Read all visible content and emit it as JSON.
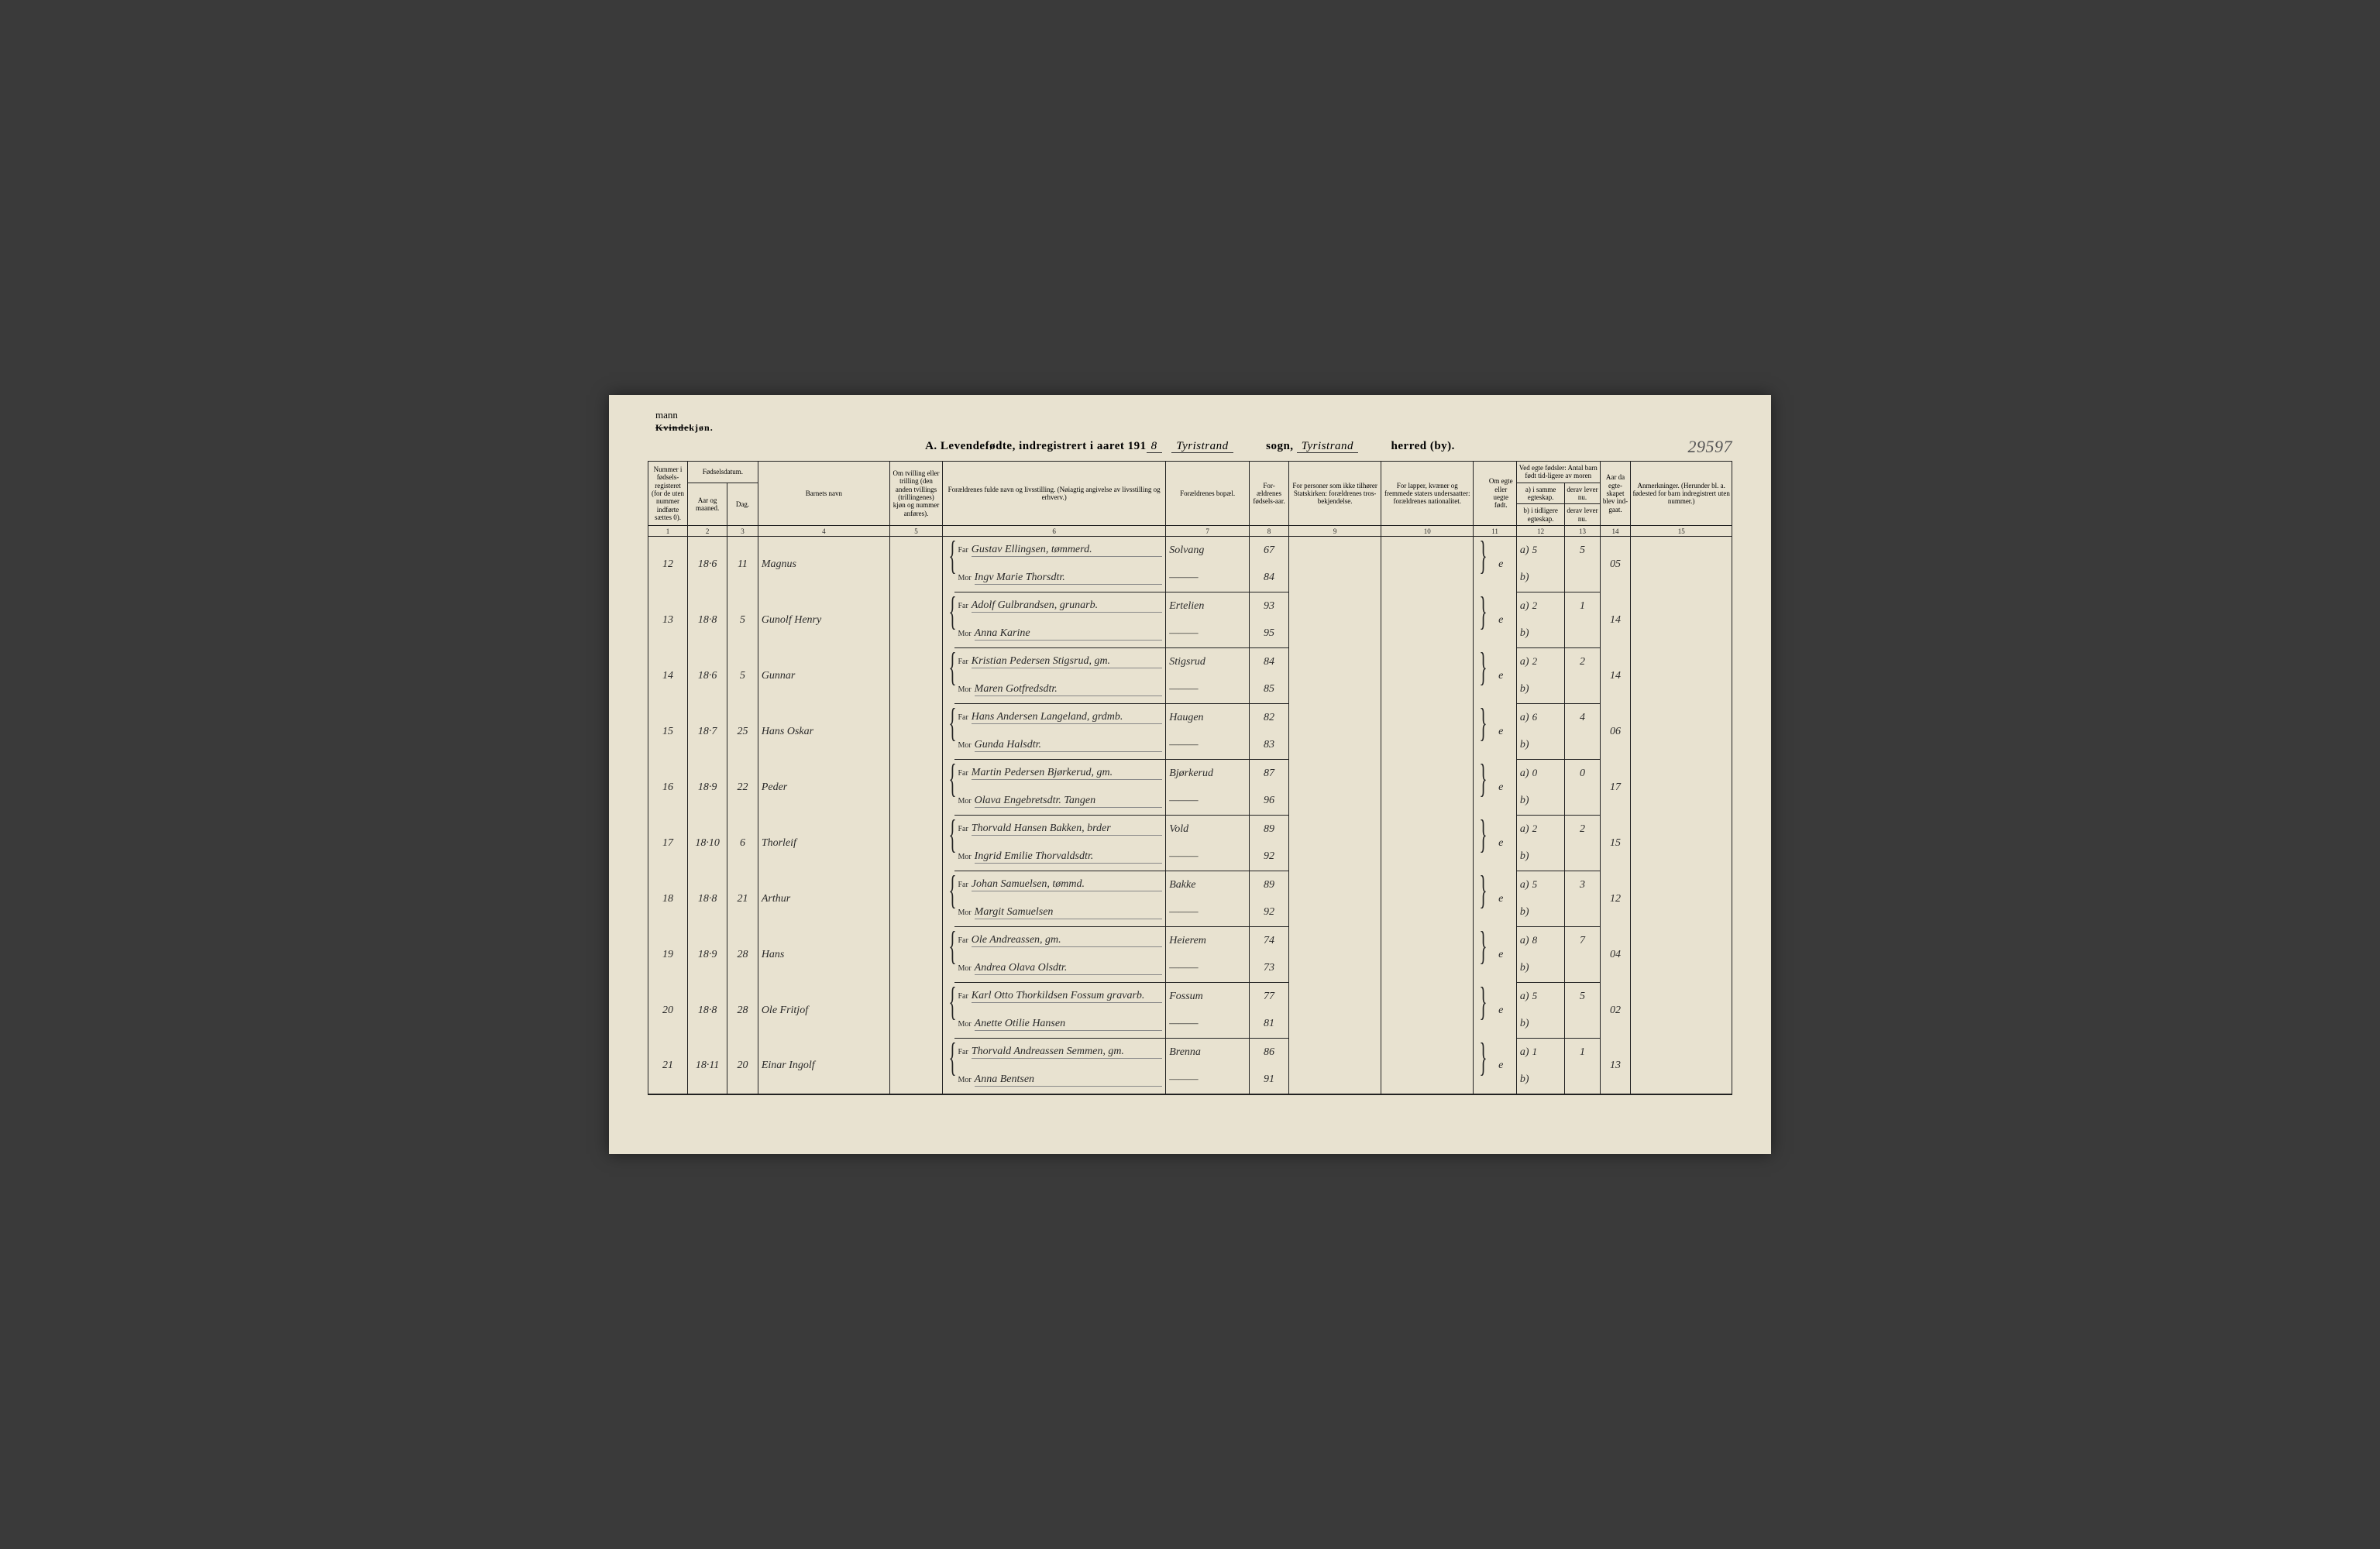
{
  "corner": {
    "handwritten": "mann",
    "struck": "Kvinde",
    "printed": "kjøn."
  },
  "title": {
    "prefix": "A. Levendefødte, indregistrert i aaret 191",
    "year_suffix": "8",
    "sogn_value": "Tyristrand",
    "sogn_label": "sogn,",
    "herred_value": "Tyristrand",
    "herred_label": "herred (by)."
  },
  "page_number": "29597",
  "headers": {
    "c1": "Nummer i fødsels-registeret (for de uten nummer indførte sættes 0).",
    "c2_top": "Fødselsdatum.",
    "c2a": "Aar og maaned.",
    "c2b": "Dag.",
    "c4": "Barnets navn",
    "c5": "Om tvilling eller trilling (den anden tvillings (trillingenes) kjøn og nummer anføres).",
    "c6": "Forældrenes fulde navn og livsstilling. (Nøiagtig angivelse av livsstilling og erhverv.)",
    "c7": "Forældrenes bopæl.",
    "c8": "For-ældrenes fødsels-aar.",
    "c9": "For personer som ikke tilhører Statskirken: forældrenes tros-bekjendelse.",
    "c10": "For lapper, kvæner og fremmede staters undersaatter: forældrenes nationalitet.",
    "c11": "Om egte eller uegte født.",
    "c12_top": "Ved egte fødsler: Antal barn født tid-ligere av moren",
    "c12a": "a) i samme egteskap.",
    "c12b": "b) i tidligere egteskap.",
    "c13a": "derav lever nu.",
    "c13b": "derav lever nu.",
    "c14": "Aar da egte-skapet blev ind-gaat.",
    "c15": "Anmerkninger. (Herunder bl. a. fødested for barn indregistrert uten nummer.)"
  },
  "colnums": [
    "1",
    "2",
    "3",
    "4",
    "5",
    "6",
    "7",
    "8",
    "9",
    "10",
    "11",
    "12",
    "13",
    "14",
    "15"
  ],
  "far_label": "Far",
  "mor_label": "Mor",
  "a_label": "a)",
  "b_label": "b)",
  "rows": [
    {
      "num": "12",
      "ym": "18·6",
      "day": "11",
      "name": "Magnus",
      "far": "Gustav Ellingsen, tømmerd.",
      "mor": "Ingv Marie Thorsdtr.",
      "bopel_far": "Solvang",
      "bopel_mor": "———",
      "yr_far": "67",
      "yr_mor": "84",
      "egte": "e",
      "a": "5",
      "lever": "5",
      "aar": "05"
    },
    {
      "num": "13",
      "ym": "18·8",
      "day": "5",
      "name": "Gunolf Henry",
      "far": "Adolf Gulbrandsen, grunarb.",
      "mor": "Anna Karine",
      "bopel_far": "Ertelien",
      "bopel_mor": "———",
      "yr_far": "93",
      "yr_mor": "95",
      "egte": "e",
      "a": "2",
      "lever": "1",
      "aar": "14"
    },
    {
      "num": "14",
      "ym": "18·6",
      "day": "5",
      "name": "Gunnar",
      "far": "Kristian Pedersen Stigsrud, gm.",
      "mor": "Maren Gotfredsdtr.",
      "bopel_far": "Stigsrud",
      "bopel_mor": "———",
      "yr_far": "84",
      "yr_mor": "85",
      "egte": "e",
      "a": "2",
      "lever": "2",
      "aar": "14"
    },
    {
      "num": "15",
      "ym": "18·7",
      "day": "25",
      "name": "Hans Oskar",
      "far": "Hans Andersen Langeland, grdmb.",
      "mor": "Gunda Halsdtr.",
      "bopel_far": "Haugen",
      "bopel_mor": "———",
      "yr_far": "82",
      "yr_mor": "83",
      "egte": "e",
      "a": "6",
      "lever": "4",
      "aar": "06"
    },
    {
      "num": "16",
      "ym": "18·9",
      "day": "22",
      "name": "Peder",
      "far": "Martin Pedersen Bjørkerud, gm.",
      "mor": "Olava Engebretsdtr. Tangen",
      "bopel_far": "Bjørkerud",
      "bopel_mor": "———",
      "yr_far": "87",
      "yr_mor": "96",
      "egte": "e",
      "a": "0",
      "lever": "0",
      "aar": "17"
    },
    {
      "num": "17",
      "ym": "18·10",
      "day": "6",
      "name": "Thorleif",
      "far": "Thorvald Hansen Bakken, brder",
      "mor": "Ingrid Emilie Thorvaldsdtr.",
      "bopel_far": "Vold",
      "bopel_mor": "———",
      "yr_far": "89",
      "yr_mor": "92",
      "egte": "e",
      "a": "2",
      "lever": "2",
      "aar": "15"
    },
    {
      "num": "18",
      "ym": "18·8",
      "day": "21",
      "name": "Arthur",
      "far": "Johan Samuelsen, tømmd.",
      "mor": "Margit Samuelsen",
      "bopel_far": "Bakke",
      "bopel_mor": "———",
      "yr_far": "89",
      "yr_mor": "92",
      "egte": "e",
      "a": "5",
      "lever": "3",
      "aar": "12"
    },
    {
      "num": "19",
      "ym": "18·9",
      "day": "28",
      "name": "Hans",
      "far": "Ole Andreassen, gm.",
      "mor": "Andrea Olava Olsdtr.",
      "bopel_far": "Heierem",
      "bopel_mor": "———",
      "yr_far": "74",
      "yr_mor": "73",
      "egte": "e",
      "a": "8",
      "lever": "7",
      "aar": "04"
    },
    {
      "num": "20",
      "ym": "18·8",
      "day": "28",
      "name": "Ole Fritjof",
      "far": "Karl Otto Thorkildsen Fossum gravarb.",
      "mor": "Anette Otilie Hansen",
      "bopel_far": "Fossum",
      "bopel_mor": "———",
      "yr_far": "77",
      "yr_mor": "81",
      "egte": "e",
      "a": "5",
      "lever": "5",
      "aar": "02"
    },
    {
      "num": "21",
      "ym": "18·11",
      "day": "20",
      "name": "Einar Ingolf",
      "far": "Thorvald Andreassen Semmen, gm.",
      "mor": "Anna Bentsen",
      "bopel_far": "Brenna",
      "bopel_mor": "———",
      "yr_far": "86",
      "yr_mor": "91",
      "egte": "e",
      "a": "1",
      "lever": "1",
      "aar": "13"
    }
  ]
}
